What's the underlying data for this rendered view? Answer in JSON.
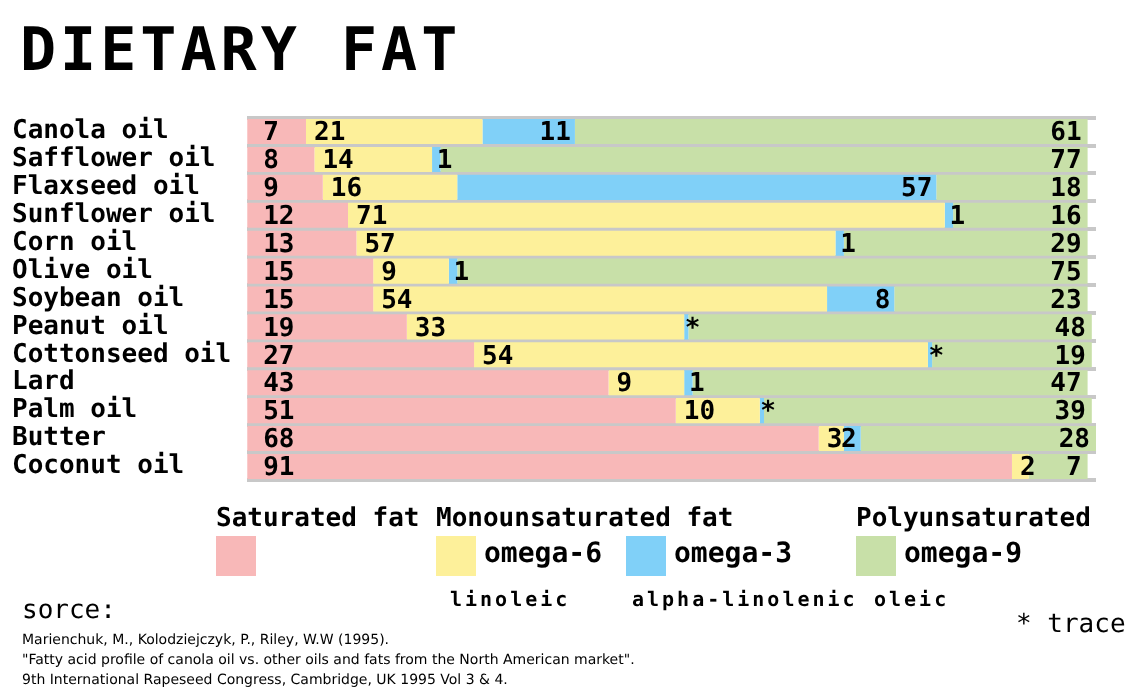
{
  "chart_data": {
    "type": "bar",
    "title": "DIETARY FAT",
    "orientation": "horizontal",
    "stacked": true,
    "categories": [
      "Canola oil",
      "Safflower oil",
      "Flaxseed oil",
      "Sunflower oil",
      "Corn oil",
      "Olive oil",
      "Soybean oil",
      "Peanut oil",
      "Cottonseed oil",
      "Lard",
      "Palm oil",
      "Butter",
      "Coconut oil"
    ],
    "series": [
      {
        "name": "Saturated fat",
        "color": "#f8b8b8",
        "values": [
          7,
          8,
          9,
          12,
          13,
          15,
          15,
          19,
          27,
          43,
          51,
          68,
          91
        ]
      },
      {
        "name": "omega-6",
        "color": "#fdf09a",
        "values": [
          21,
          14,
          16,
          71,
          57,
          9,
          54,
          33,
          54,
          9,
          10,
          3,
          2
        ]
      },
      {
        "name": "omega-3",
        "color": "#80d0f8",
        "values": [
          11,
          1,
          57,
          1,
          1,
          1,
          8,
          0.5,
          0.5,
          1,
          0.5,
          2,
          null
        ],
        "value_labels": [
          "11",
          "1",
          "57",
          "1",
          "1",
          "1",
          "8",
          "*",
          "*",
          "1",
          "*",
          "2",
          null
        ]
      },
      {
        "name": "omega-9",
        "color": "#c8e0a8",
        "values": [
          61,
          77,
          18,
          16,
          29,
          75,
          23,
          48,
          19,
          47,
          39,
          28,
          7
        ]
      }
    ],
    "xlim": [
      0,
      101
    ],
    "tick_labels": "y",
    "grid": "y",
    "data_labels": true,
    "legend": "bottom",
    "annotations": [
      "Monounsaturated fat",
      "Polyunsaturated",
      "linoleic",
      "alpha-linolenic",
      "oleic",
      "sorce:",
      "Marienchuk, M., Kolodziejczyk, P., Riley, W.W (1995).",
      "\"Fatty acid profile of canola oil vs. other oils and fats from the North American market\".",
      "9th International Rapeseed Congress, Cambridge, UK 1995 Vol 3 & 4.",
      "* trace"
    ]
  }
}
